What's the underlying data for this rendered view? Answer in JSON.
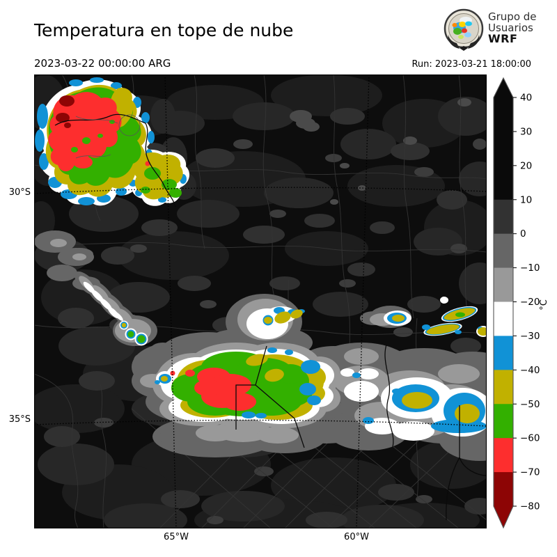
{
  "header": {
    "title": "Temperatura en tope de nube",
    "valid_time": "2023-03-22 00:00:00 ARG",
    "run_time": "Run: 2023-03-21 18:00:00",
    "logo_text": {
      "line1": "Grupo de",
      "line2": "Usuarios",
      "line3": "WRF"
    }
  },
  "map": {
    "lat_labels": [
      "30°S",
      "35°S"
    ],
    "lon_labels": [
      "65°W",
      "60°W"
    ]
  },
  "colorbar": {
    "unit": "°C",
    "tick_labels": [
      "40",
      "30",
      "20",
      "10",
      "0",
      "−10",
      "−20",
      "−30",
      "−40",
      "−50",
      "−60",
      "−70",
      "−80"
    ],
    "interval_colors": [
      "#0a0a0a",
      "#0a0a0a",
      "#0a0a0a",
      "#323232",
      "#666666",
      "#999999",
      "#ffffff",
      "#1192d6",
      "#c1b100",
      "#33b000",
      "#fd2e2e",
      "#8d0505"
    ],
    "over_color": "#0a0a0a",
    "under_color": "#8d0505",
    "outline_color": "#555555"
  }
}
